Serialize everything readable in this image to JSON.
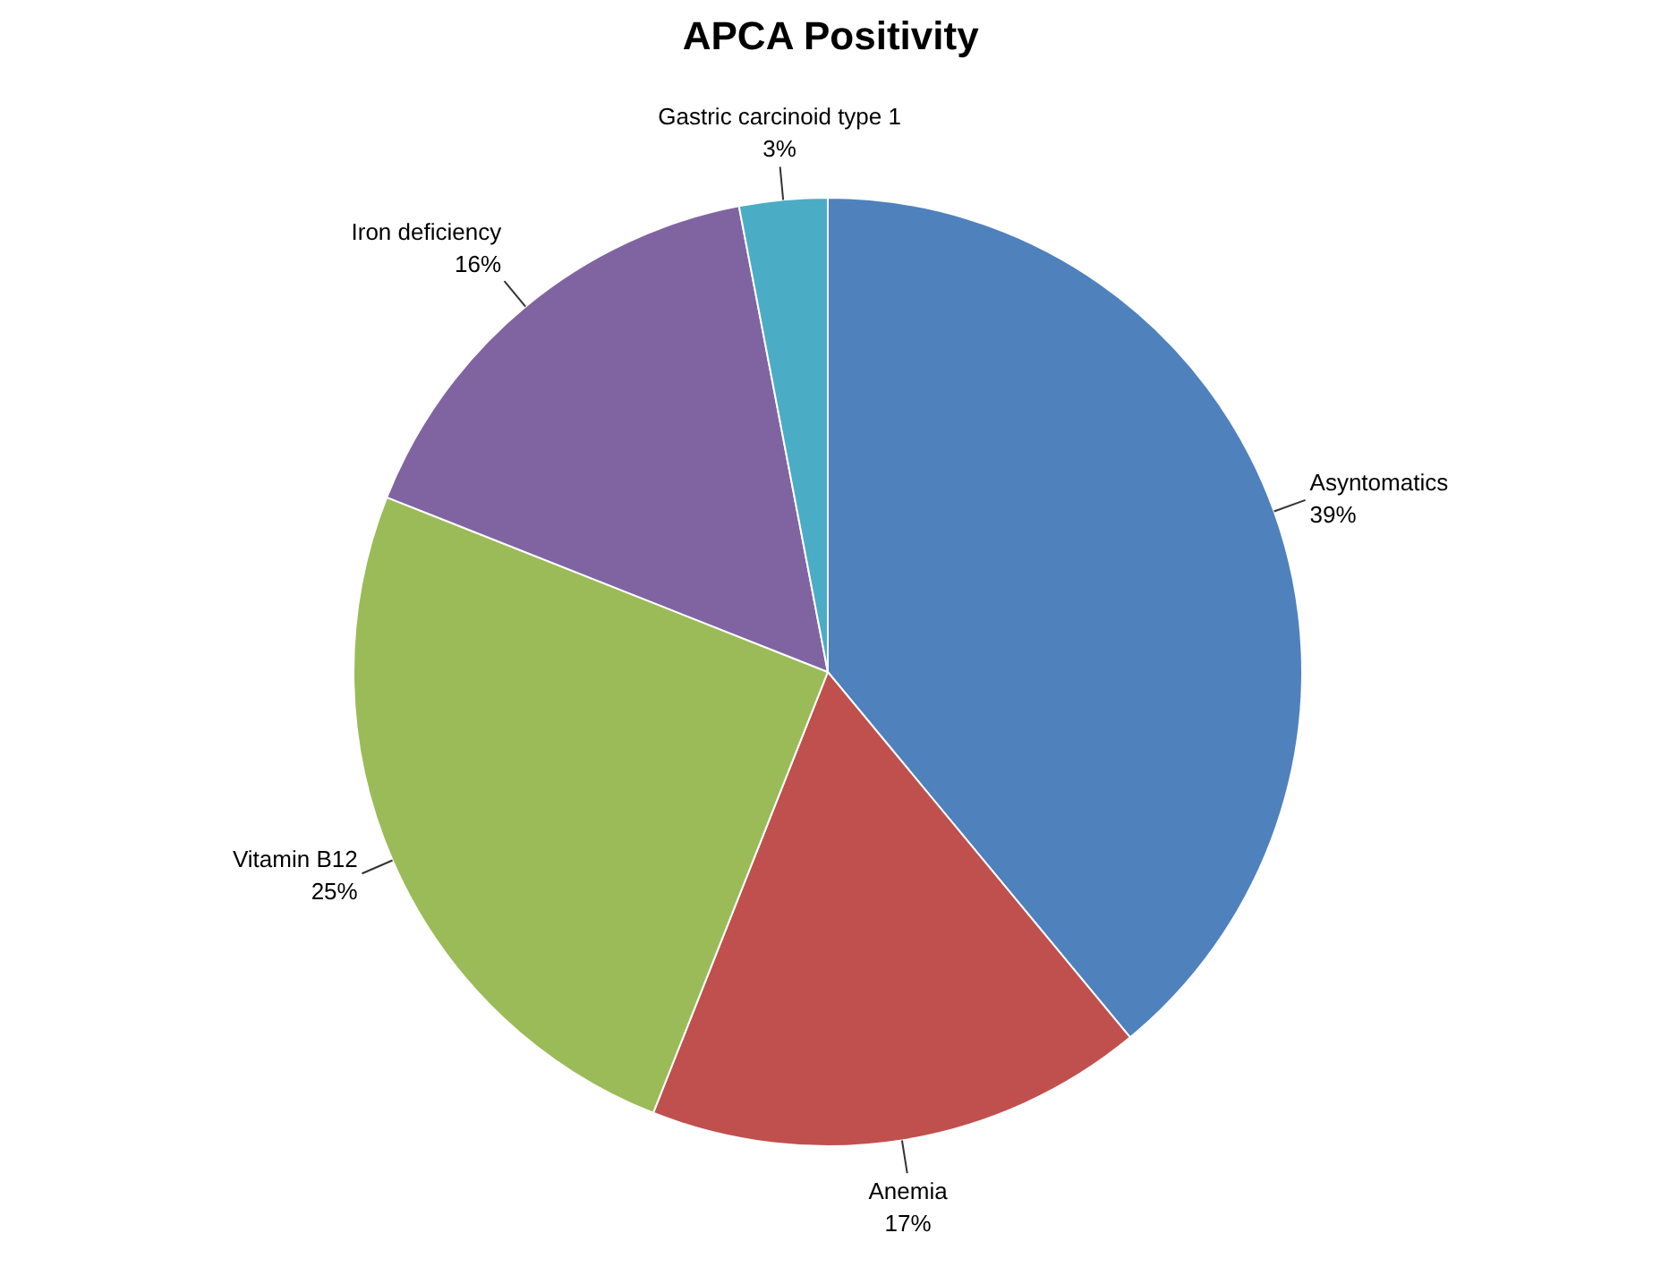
{
  "chart_data": {
    "type": "pie",
    "title": "APCA Positivity",
    "categories": [
      "Asyntomatics",
      "Anemia",
      "Vitamin B12",
      "Iron deficiency",
      "Gastric carcinoid type 1"
    ],
    "values": [
      39,
      17,
      25,
      16,
      3
    ],
    "value_labels": [
      "39%",
      "17%",
      "25%",
      "16%",
      "3%"
    ],
    "colors": [
      "#4f81bd",
      "#c0504d",
      "#9bbb59",
      "#8064a2",
      "#4bacc6"
    ]
  }
}
